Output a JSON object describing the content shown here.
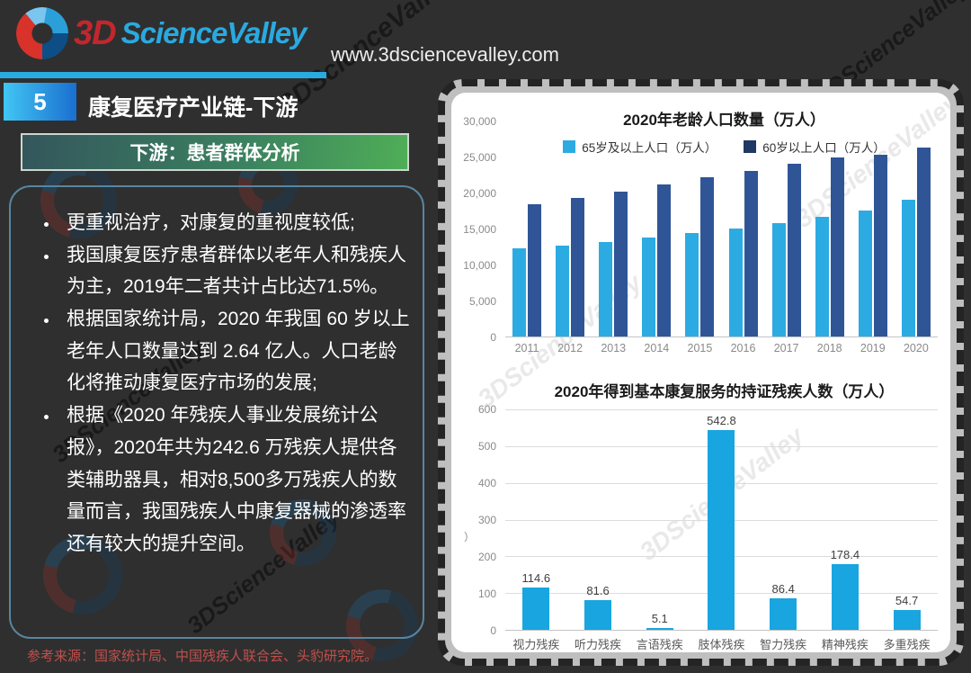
{
  "header": {
    "logo_text_3d": "3D",
    "logo_text_rest": "ScienceValley",
    "url": "www.3dsciencevalley.com"
  },
  "slide": {
    "page_number": "5",
    "title": "康复医疗产业链-下游",
    "banner": "下游：患者群体分析",
    "bullets": [
      "更重视治疗，对康复的重视度较低;",
      "我国康复医疗患者群体以老年人和残疾人为主，2019年二者共计占比达71.5%。",
      "根据国家统计局，2020 年我国 60 岁以上老年人口数量达到 2.64 亿人。人口老龄化将推动康复医疗市场的发展;",
      "根据《2020 年残疾人事业发展统计公报》，2020年共为242.6 万残疾人提供各类辅助器具，相对8,500多万残疾人的数量而言，我国残疾人中康复器械的渗透率还有较大的提升空间。"
    ],
    "source_note": "参考来源：国家统计局、中国残疾人联合会、头豹研究院。",
    "watermark_text": "3DScienceValley"
  },
  "colors": {
    "accent_blue": "#29ABE2",
    "brand_red": "#C1272D",
    "dark_navy": "#1F3864",
    "medium_navy": "#2F5597",
    "source_note_red": "#C0504D",
    "banner_green": "#4FAE57",
    "banner_teal": "#34565C"
  },
  "chart_data": [
    {
      "type": "bar",
      "title": "2020年老龄人口数量（万人）",
      "categories": [
        "2011",
        "2012",
        "2013",
        "2014",
        "2015",
        "2016",
        "2017",
        "2018",
        "2019",
        "2020"
      ],
      "series": [
        {
          "name": "65岁及以上人口（万人）",
          "color": "#2CABE3",
          "legend_color": "#2CABE3",
          "values": [
            12288,
            12714,
            13161,
            13755,
            14386,
            15003,
            15831,
            16658,
            17603,
            19064
          ]
        },
        {
          "name": "60岁以上人口（万人）",
          "color": "#2F5597",
          "legend_color": "#1F3864",
          "values": [
            18499,
            19390,
            20243,
            21242,
            22200,
            23086,
            24090,
            24949,
            25388,
            26402
          ]
        }
      ],
      "ylim": [
        0,
        30000
      ],
      "yticks": [
        "30,000",
        "25,000",
        "20,000",
        "15,000",
        "10,000",
        "5,000",
        "0"
      ],
      "legend_position": "top",
      "grid": false
    },
    {
      "type": "bar",
      "title": "2020年得到基本康复服务的持证残疾人数（万人）",
      "categories": [
        "视力残疾",
        "听力残疾",
        "言语残疾",
        "肢体残疾",
        "智力残疾",
        "精神残疾",
        "多重残疾"
      ],
      "values": [
        114.6,
        81.6,
        5.1,
        542.8,
        86.4,
        178.4,
        54.7
      ],
      "bar_color": "#19A5E0",
      "ylim": [
        0,
        600
      ],
      "yticks": [
        "600",
        "500",
        "400",
        "300",
        "200",
        "100",
        "0"
      ],
      "y_axis_note": "）",
      "grid": true,
      "legend_position": "none"
    }
  ]
}
